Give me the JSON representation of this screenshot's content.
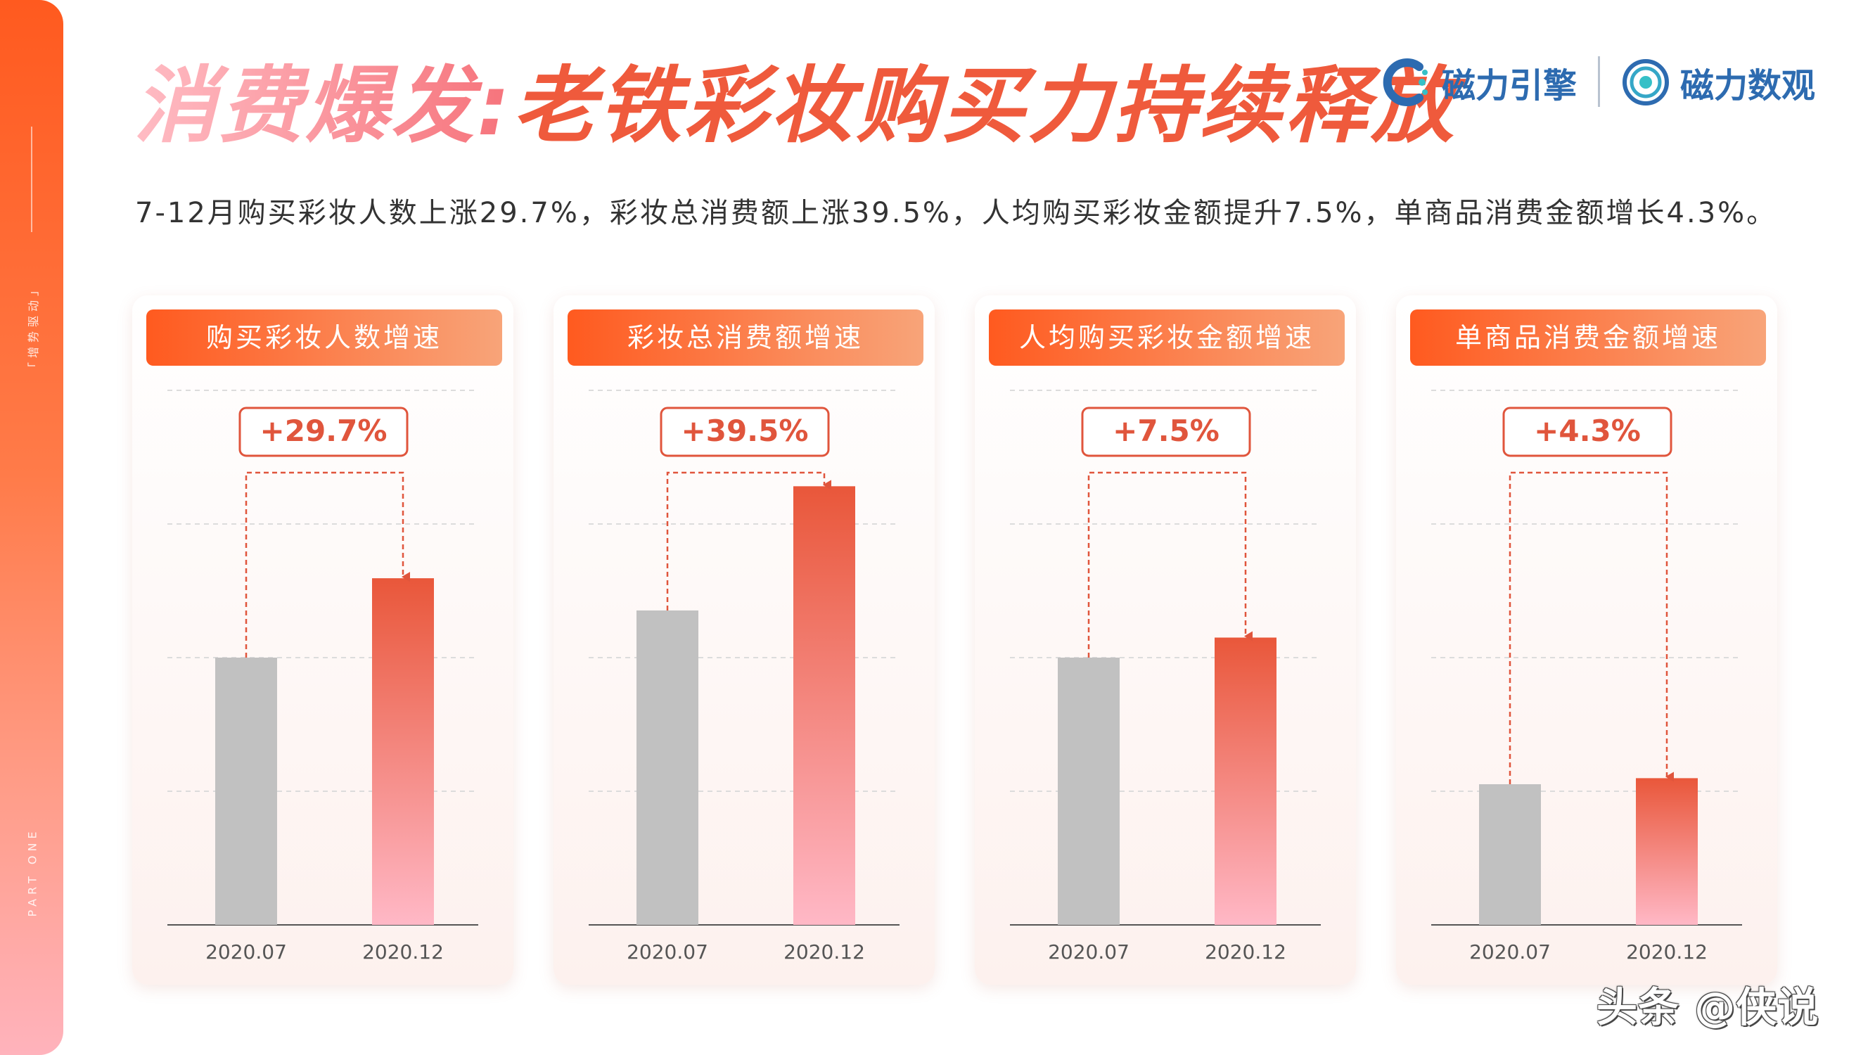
{
  "sidebar": {
    "top_label": "「增势驱动」",
    "bottom_label": "PART ONE"
  },
  "title": {
    "highlight": "消费爆发:",
    "rest": "老铁彩妆购买力持续释放"
  },
  "logos": {
    "engine": "磁力引擎",
    "insight": "磁力数观"
  },
  "subtitle": "7-12月购买彩妆人数上涨29.7%，彩妆总消费额上涨39.5%，人均购买彩妆金额提升7.5%，单商品消费金额增长4.3%。",
  "watermark": "头条 @侠说",
  "colors": {
    "accent": "#ff5a1f",
    "bar_old": "#c1c1c1",
    "bar_new_top": "#e9573a",
    "bar_new_bottom": "#ffb8c6",
    "growth_text": "#e0553c"
  },
  "chart_data": [
    {
      "type": "bar",
      "title": "购买彩妆人数增速",
      "categories": [
        "2020.07",
        "2020.12"
      ],
      "values": [
        1.0,
        1.297
      ],
      "ylim": [
        0,
        2.0
      ],
      "growth_label": "+29.7%",
      "grid": true
    },
    {
      "type": "bar",
      "title": "彩妆总消费额增速",
      "categories": [
        "2020.07",
        "2020.12"
      ],
      "values": [
        1.0,
        1.395
      ],
      "ylim": [
        0,
        1.7
      ],
      "growth_label": "+39.5%",
      "grid": true
    },
    {
      "type": "bar",
      "title": "人均购买彩妆金额增速",
      "categories": [
        "2020.07",
        "2020.12"
      ],
      "values": [
        1.0,
        1.075
      ],
      "ylim": [
        0,
        2.0
      ],
      "growth_label": "+7.5%",
      "grid": true
    },
    {
      "type": "bar",
      "title": "单商品消费金额增速",
      "categories": [
        "2020.07",
        "2020.12"
      ],
      "values": [
        1.0,
        1.043
      ],
      "ylim": [
        0,
        3.8
      ],
      "growth_label": "+4.3%",
      "grid": true
    }
  ]
}
